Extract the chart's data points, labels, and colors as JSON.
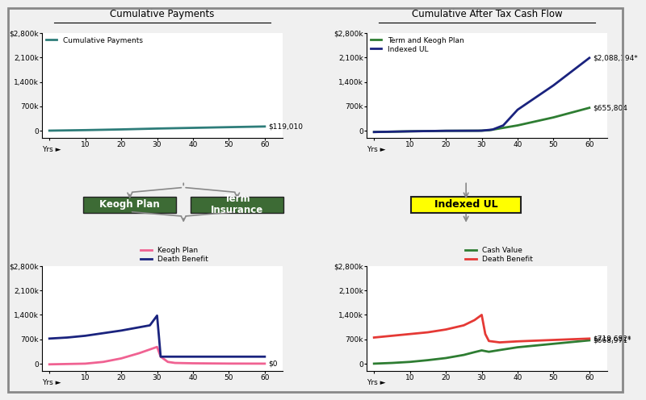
{
  "bg_color": "#f0f0f0",
  "panel_bg": "#ffffff",
  "top_left_title": "Cumulative Payments",
  "top_right_title": "Cumulative After Tax Cash Flow",
  "cum_payments_x": [
    0,
    10,
    20,
    30,
    40,
    50,
    60
  ],
  "cum_payments_y": [
    0,
    15000,
    35000,
    60000,
    80000,
    100000,
    119010
  ],
  "cum_payments_color": "#2e7d7a",
  "cum_payments_label": "Cumulative Payments",
  "cum_payments_end_label": "$119,010",
  "cum_payments_yticks": [
    0,
    700000,
    1400000,
    2100000,
    2800000
  ],
  "cum_payments_yticklabels": [
    "0",
    "700k",
    "1,400k",
    "2,100k",
    "$2,800k"
  ],
  "cashflow_term_x": [
    0,
    10,
    20,
    29,
    30,
    32,
    40,
    50,
    60
  ],
  "cashflow_term_y": [
    -40000,
    -20000,
    -5000,
    -2000,
    0,
    10000,
    150000,
    380000,
    655804
  ],
  "cashflow_term_color": "#2e7d32",
  "cashflow_term_label": "Term and Keogh Plan",
  "cashflow_term_end_label": "$655,804",
  "cashflow_iul_x": [
    0,
    10,
    20,
    29,
    30,
    33,
    36,
    40,
    50,
    60
  ],
  "cashflow_iul_y": [
    -40000,
    -20000,
    -5000,
    -2000,
    0,
    30000,
    150000,
    600000,
    1300000,
    2088194
  ],
  "cashflow_iul_color": "#1a237e",
  "cashflow_iul_label": "Indexed UL",
  "cashflow_iul_end_label": "$2,088,194*",
  "cashflow_yticks": [
    0,
    700000,
    1400000,
    2100000,
    2800000
  ],
  "cashflow_yticklabels": [
    "0",
    "700k",
    "1,400k",
    "2,100k",
    "$2,800k"
  ],
  "keogh_x": [
    0,
    5,
    10,
    15,
    20,
    25,
    30,
    31,
    33,
    35,
    40,
    50,
    60
  ],
  "keogh_y": [
    -20000,
    -10000,
    0,
    50000,
    150000,
    300000,
    480000,
    200000,
    50000,
    20000,
    10000,
    2000,
    0
  ],
  "keogh_color": "#f06292",
  "keogh_label": "Keogh Plan",
  "keogh_end_label": "$0",
  "death_benefit_keogh_x": [
    0,
    5,
    10,
    20,
    28,
    30,
    30.5,
    31,
    60
  ],
  "death_benefit_keogh_y": [
    720000,
    750000,
    800000,
    950000,
    1100000,
    1380000,
    800000,
    200000,
    200000
  ],
  "death_benefit_keogh_color": "#1a237e",
  "death_benefit_keogh_label": "Death Benefit",
  "keogh_yticks": [
    0,
    700000,
    1400000,
    2100000,
    2800000
  ],
  "keogh_yticklabels": [
    "0",
    "700k",
    "1,400k",
    "2,100k",
    "$2,800k"
  ],
  "iul_cv_x": [
    0,
    5,
    10,
    15,
    20,
    25,
    28,
    30,
    32,
    35,
    40,
    50,
    60
  ],
  "iul_cv_y": [
    0,
    20000,
    50000,
    100000,
    160000,
    250000,
    330000,
    380000,
    340000,
    390000,
    470000,
    570000,
    668971
  ],
  "iul_cv_color": "#2e7d32",
  "iul_cv_label": "Cash Value",
  "iul_cv_end_label": "$668,971*",
  "iul_db_x": [
    0,
    5,
    10,
    15,
    20,
    25,
    28,
    30,
    31,
    32,
    35,
    40,
    45,
    50,
    55,
    60
  ],
  "iul_db_y": [
    750000,
    800000,
    850000,
    900000,
    980000,
    1100000,
    1250000,
    1400000,
    850000,
    650000,
    610000,
    640000,
    660000,
    680000,
    700000,
    719682
  ],
  "iul_db_color": "#e53935",
  "iul_db_label": "Death Benefit",
  "iul_db_end_label": "$719,682*",
  "iul_yticks": [
    0,
    700000,
    1400000,
    2100000,
    2800000
  ],
  "iul_yticklabels": [
    "0",
    "700k",
    "1,400k",
    "2,100k",
    "$2,800k"
  ],
  "xticks": [
    0,
    10,
    20,
    30,
    40,
    50,
    60
  ],
  "xticklabels": [
    "",
    "10",
    "20",
    "30",
    "40",
    "50",
    "60"
  ],
  "keogh_box_color": "#3d6b35",
  "term_box_color": "#3d6b35",
  "iul_box_color": "#ffff00",
  "arrow_color": "#888888"
}
